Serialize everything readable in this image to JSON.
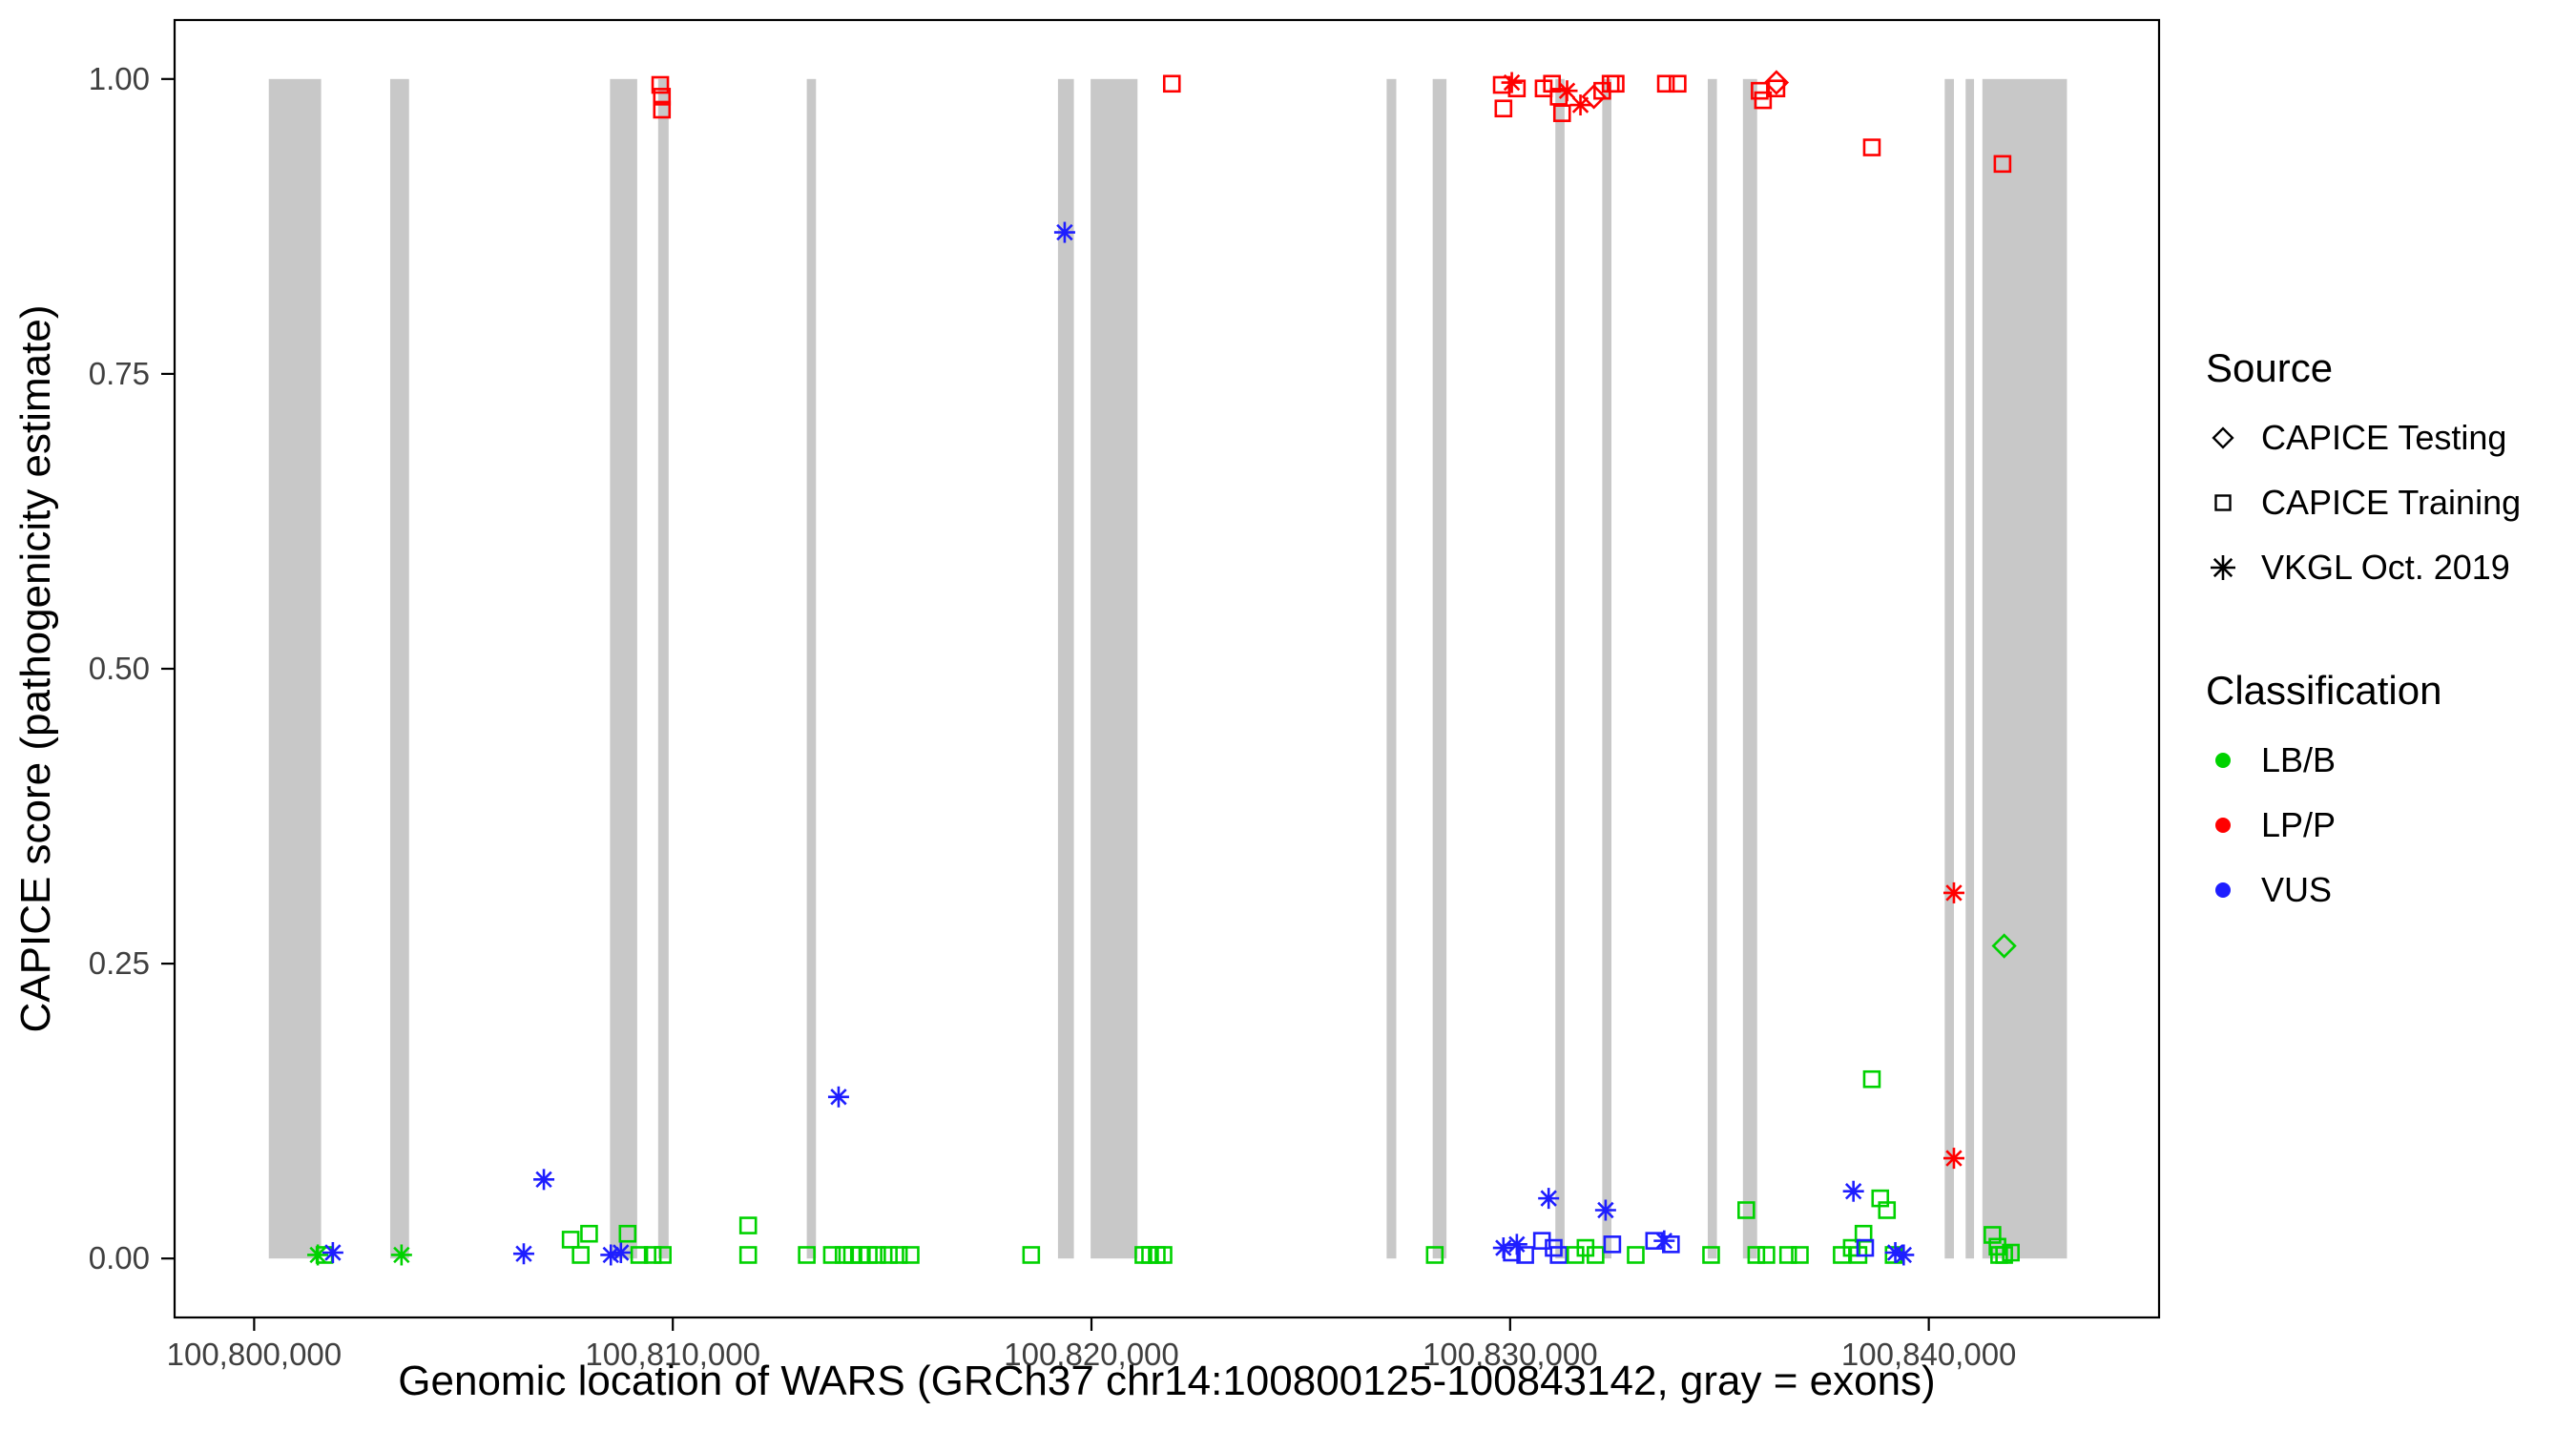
{
  "legend": {
    "source_title": "Source",
    "classification_title": "Classification"
  },
  "chart_data": {
    "type": "scatter",
    "title": "",
    "xlabel": "Genomic location of WARS (GRCh37 chr14:100800125-100843142, gray = exons)",
    "ylabel": "CAPICE score (pathogenicity estimate)",
    "xlim": [
      100798100,
      100845500
    ],
    "ylim": [
      -0.05,
      1.05
    ],
    "grid": false,
    "legend_position": "right",
    "x_ticks": [
      {
        "value": 100800000,
        "label": "100,800,000"
      },
      {
        "value": 100810000,
        "label": "100,810,000"
      },
      {
        "value": 100820000,
        "label": "100,820,000"
      },
      {
        "value": 100830000,
        "label": "100,830,000"
      },
      {
        "value": 100840000,
        "label": "100,840,000"
      }
    ],
    "y_ticks": [
      {
        "value": 0.0,
        "label": "0.00"
      },
      {
        "value": 0.25,
        "label": "0.25"
      },
      {
        "value": 0.5,
        "label": "0.50"
      },
      {
        "value": 0.75,
        "label": "0.75"
      },
      {
        "value": 1.0,
        "label": "1.00"
      }
    ],
    "exon_color": "#c8c8c8",
    "exons": [
      [
        100800350,
        100801600
      ],
      [
        100803250,
        100803700
      ],
      [
        100808500,
        100809150
      ],
      [
        100809650,
        100809900
      ],
      [
        100813200,
        100813420
      ],
      [
        100819200,
        100819580
      ],
      [
        100819980,
        100821100
      ],
      [
        100827050,
        100827280
      ],
      [
        100828150,
        100828480
      ],
      [
        100831080,
        100831300
      ],
      [
        100832200,
        100832420
      ],
      [
        100834720,
        100834940
      ],
      [
        100835560,
        100835900
      ],
      [
        100840380,
        100840600
      ],
      [
        100840880,
        100841080
      ],
      [
        100841280,
        100843300
      ]
    ],
    "sources": [
      {
        "id": "testing",
        "label": "CAPICE Testing",
        "shape": "diamond"
      },
      {
        "id": "training",
        "label": "CAPICE Training",
        "shape": "square"
      },
      {
        "id": "vkgl",
        "label": "VKGL Oct. 2019",
        "shape": "asterisk"
      }
    ],
    "classifications": [
      {
        "id": "LB/B",
        "label": "LB/B",
        "color": "#00d200"
      },
      {
        "id": "LP/P",
        "label": "LP/P",
        "color": "#ff0000"
      },
      {
        "id": "VUS",
        "label": "VUS",
        "color": "#1e1eff"
      }
    ],
    "point_format": [
      "x",
      "y",
      "classification",
      "source"
    ],
    "points": [
      [
        100809700,
        0.995,
        "LP/P",
        "training"
      ],
      [
        100809740,
        0.985,
        "LP/P",
        "training"
      ],
      [
        100809740,
        0.974,
        "LP/P",
        "training"
      ],
      [
        100821920,
        0.996,
        "LP/P",
        "training"
      ],
      [
        100829800,
        0.995,
        "LP/P",
        "training"
      ],
      [
        100829840,
        0.975,
        "LP/P",
        "training"
      ],
      [
        100830040,
        0.997,
        "LP/P",
        "vkgl"
      ],
      [
        100830160,
        0.992,
        "LP/P",
        "training"
      ],
      [
        100830800,
        0.992,
        "LP/P",
        "training"
      ],
      [
        100831000,
        0.996,
        "LP/P",
        "training"
      ],
      [
        100831160,
        0.985,
        "LP/P",
        "training"
      ],
      [
        100831240,
        0.971,
        "LP/P",
        "training"
      ],
      [
        100831360,
        0.99,
        "LP/P",
        "vkgl"
      ],
      [
        100831680,
        0.978,
        "LP/P",
        "vkgl"
      ],
      [
        100832000,
        0.985,
        "LP/P",
        "testing"
      ],
      [
        100832200,
        0.99,
        "LP/P",
        "training"
      ],
      [
        100832400,
        0.996,
        "LP/P",
        "training"
      ],
      [
        100832520,
        0.996,
        "LP/P",
        "training"
      ],
      [
        100833720,
        0.996,
        "LP/P",
        "training"
      ],
      [
        100834000,
        0.996,
        "LP/P",
        "training"
      ],
      [
        100835960,
        0.99,
        "LP/P",
        "training"
      ],
      [
        100836040,
        0.982,
        "LP/P",
        "training"
      ],
      [
        100836360,
        0.997,
        "LP/P",
        "testing"
      ],
      [
        100836360,
        0.992,
        "LP/P",
        "training"
      ],
      [
        100838640,
        0.942,
        "LP/P",
        "training"
      ],
      [
        100841760,
        0.928,
        "LP/P",
        "training"
      ],
      [
        100840600,
        0.31,
        "LP/P",
        "vkgl"
      ],
      [
        100840600,
        0.085,
        "LP/P",
        "vkgl"
      ],
      [
        100841800,
        0.265,
        "LB/B",
        "testing"
      ],
      [
        100819360,
        0.87,
        "VUS",
        "vkgl"
      ],
      [
        100813960,
        0.137,
        "VUS",
        "vkgl"
      ],
      [
        100806920,
        0.067,
        "VUS",
        "vkgl"
      ],
      [
        100801520,
        0.003,
        "LB/B",
        "vkgl"
      ],
      [
        100801680,
        0.003,
        "LB/B",
        "training"
      ],
      [
        100801880,
        0.005,
        "VUS",
        "vkgl"
      ],
      [
        100803520,
        0.003,
        "LB/B",
        "vkgl"
      ],
      [
        100806440,
        0.004,
        "VUS",
        "vkgl"
      ],
      [
        100807560,
        0.016,
        "LB/B",
        "training"
      ],
      [
        100807800,
        0.003,
        "LB/B",
        "training"
      ],
      [
        100808000,
        0.021,
        "LB/B",
        "training"
      ],
      [
        100808520,
        0.003,
        "VUS",
        "vkgl"
      ],
      [
        100808760,
        0.005,
        "VUS",
        "vkgl"
      ],
      [
        100808920,
        0.021,
        "LB/B",
        "training"
      ],
      [
        100809200,
        0.003,
        "LB/B",
        "training"
      ],
      [
        100809520,
        0.003,
        "LB/B",
        "training"
      ],
      [
        100809760,
        0.003,
        "LB/B",
        "training"
      ],
      [
        100811800,
        0.028,
        "LB/B",
        "training"
      ],
      [
        100811800,
        0.003,
        "LB/B",
        "training"
      ],
      [
        100813200,
        0.003,
        "LB/B",
        "training"
      ],
      [
        100813800,
        0.003,
        "LB/B",
        "training"
      ],
      [
        100814080,
        0.003,
        "LB/B",
        "training"
      ],
      [
        100814280,
        0.003,
        "LB/B",
        "training"
      ],
      [
        100814480,
        0.003,
        "LB/B",
        "training"
      ],
      [
        100814680,
        0.003,
        "LB/B",
        "training"
      ],
      [
        100814880,
        0.003,
        "LB/B",
        "training"
      ],
      [
        100815160,
        0.003,
        "LB/B",
        "training"
      ],
      [
        100815400,
        0.003,
        "LB/B",
        "training"
      ],
      [
        100815680,
        0.003,
        "LB/B",
        "training"
      ],
      [
        100818560,
        0.003,
        "LB/B",
        "training"
      ],
      [
        100821240,
        0.003,
        "LB/B",
        "training"
      ],
      [
        100821400,
        0.003,
        "LB/B",
        "training"
      ],
      [
        100821560,
        0.003,
        "LB/B",
        "training"
      ],
      [
        100821720,
        0.003,
        "LB/B",
        "training"
      ],
      [
        100828200,
        0.003,
        "LB/B",
        "training"
      ],
      [
        100829840,
        0.009,
        "VUS",
        "vkgl"
      ],
      [
        100830040,
        0.005,
        "VUS",
        "training"
      ],
      [
        100830160,
        0.012,
        "VUS",
        "vkgl"
      ],
      [
        100830360,
        0.003,
        "VUS",
        "training"
      ],
      [
        100830760,
        0.015,
        "VUS",
        "training"
      ],
      [
        100830920,
        0.051,
        "VUS",
        "vkgl"
      ],
      [
        100831040,
        0.009,
        "VUS",
        "training"
      ],
      [
        100831160,
        0.003,
        "VUS",
        "training"
      ],
      [
        100831560,
        0.003,
        "LB/B",
        "training"
      ],
      [
        100831800,
        0.009,
        "LB/B",
        "training"
      ],
      [
        100832040,
        0.003,
        "LB/B",
        "training"
      ],
      [
        100832280,
        0.041,
        "VUS",
        "vkgl"
      ],
      [
        100832440,
        0.012,
        "VUS",
        "training"
      ],
      [
        100833000,
        0.003,
        "LB/B",
        "training"
      ],
      [
        100833440,
        0.015,
        "VUS",
        "training"
      ],
      [
        100833680,
        0.015,
        "VUS",
        "vkgl"
      ],
      [
        100833840,
        0.012,
        "VUS",
        "training"
      ],
      [
        100834800,
        0.003,
        "LB/B",
        "training"
      ],
      [
        100835640,
        0.041,
        "LB/B",
        "training"
      ],
      [
        100835880,
        0.003,
        "LB/B",
        "training"
      ],
      [
        100836120,
        0.003,
        "LB/B",
        "training"
      ],
      [
        100836640,
        0.003,
        "LB/B",
        "training"
      ],
      [
        100836920,
        0.003,
        "LB/B",
        "training"
      ],
      [
        100837920,
        0.003,
        "LB/B",
        "training"
      ],
      [
        100838160,
        0.009,
        "LB/B",
        "training"
      ],
      [
        100838200,
        0.057,
        "VUS",
        "vkgl"
      ],
      [
        100838320,
        0.003,
        "LB/B",
        "training"
      ],
      [
        100838440,
        0.021,
        "LB/B",
        "training"
      ],
      [
        100838480,
        0.009,
        "VUS",
        "training"
      ],
      [
        100838640,
        0.152,
        "LB/B",
        "training"
      ],
      [
        100838840,
        0.051,
        "LB/B",
        "training"
      ],
      [
        100839000,
        0.041,
        "LB/B",
        "training"
      ],
      [
        100839160,
        0.003,
        "LB/B",
        "training"
      ],
      [
        100839200,
        0.005,
        "VUS",
        "vkgl"
      ],
      [
        100839400,
        0.003,
        "VUS",
        "vkgl"
      ],
      [
        100841520,
        0.02,
        "LB/B",
        "training"
      ],
      [
        100841640,
        0.01,
        "LB/B",
        "training"
      ],
      [
        100841680,
        0.003,
        "LB/B",
        "training"
      ],
      [
        100841800,
        0.003,
        "LB/B",
        "training"
      ],
      [
        100841960,
        0.005,
        "LB/B",
        "training"
      ]
    ]
  }
}
